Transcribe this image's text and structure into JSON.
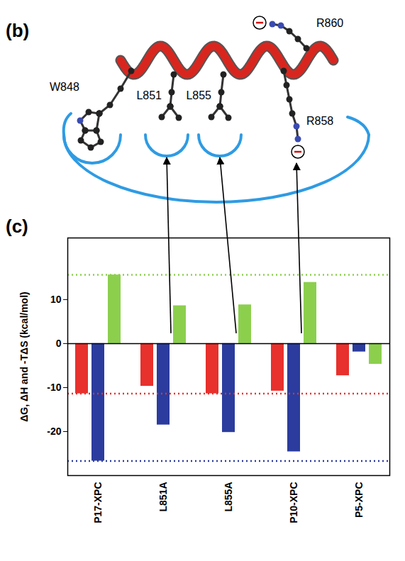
{
  "diagram": {
    "panel": "(b)",
    "residues": [
      "W848",
      "L851",
      "L855",
      "R858",
      "R860"
    ]
  },
  "chart_data": {
    "panel": "(c)",
    "type": "bar",
    "y_label": "ΔG, ΔH and -TΔS (kcal/mol)",
    "categories": [
      "P17-XPC",
      "L851A",
      "L855A",
      "P10-XPC",
      "P5-XPC"
    ],
    "series": [
      {
        "color": "#e8302c",
        "values": [
          -11.4,
          -9.7,
          -11.4,
          -10.8,
          -7.3
        ]
      },
      {
        "color": "#2b3c9e",
        "values": [
          -26.7,
          -18.5,
          -20.2,
          -24.6,
          -1.9
        ]
      },
      {
        "color": "#8ccf4d",
        "values": [
          15.6,
          8.6,
          8.8,
          13.9,
          -4.7
        ]
      }
    ],
    "ylim": [
      -30,
      24
    ],
    "yticks": [
      -20,
      -10,
      0,
      10
    ],
    "grid": false
  }
}
